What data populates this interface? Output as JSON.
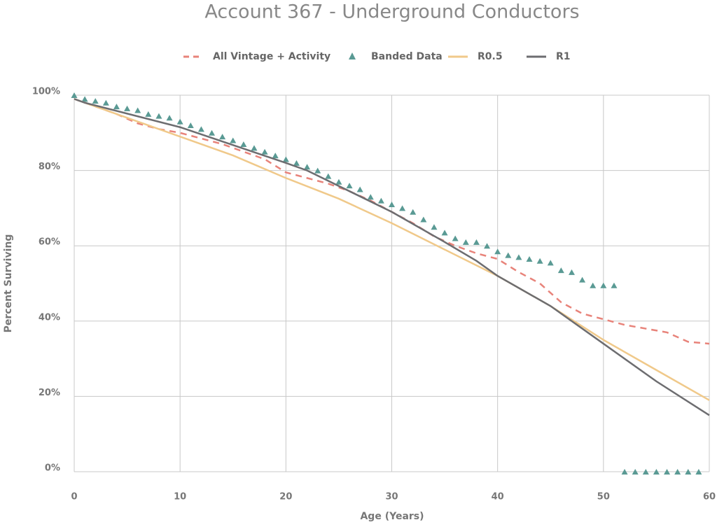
{
  "chart_data": {
    "type": "line",
    "title": "Account 367 - Underground Conductors",
    "x_label": "Age (Years)",
    "y_label": "Percent Surviving",
    "xlim": [
      0,
      60
    ],
    "xticks": [
      0,
      10,
      20,
      30,
      40,
      50,
      60
    ],
    "ylim": [
      0,
      100
    ],
    "yticks": [
      {
        "value": 0,
        "label": "0%"
      },
      {
        "value": 20,
        "label": "20%"
      },
      {
        "value": 40,
        "label": "40%"
      },
      {
        "value": 60,
        "label": "60%"
      },
      {
        "value": 80,
        "label": "80%"
      },
      {
        "value": 100,
        "label": "100%"
      }
    ],
    "grid": true,
    "legend": "top",
    "series": [
      {
        "name": "All Vintage + Activity",
        "color": "#e8837a",
        "line_style": "dashed",
        "x": [
          0,
          2,
          4,
          6,
          8,
          10,
          12,
          14,
          16,
          18,
          20,
          22,
          24,
          26,
          28,
          30,
          32,
          34,
          36,
          38,
          40,
          42,
          44,
          46,
          48,
          50,
          52,
          54,
          56,
          58,
          60
        ],
        "values": [
          99,
          97,
          95,
          92.5,
          91,
          90,
          88.5,
          87,
          85,
          83,
          79.5,
          78,
          76.5,
          74.5,
          72,
          69,
          66,
          62.5,
          60,
          58,
          56.5,
          53,
          50,
          45,
          42,
          40.5,
          39,
          38,
          37,
          34.5,
          34
        ]
      },
      {
        "name": "Banded Data",
        "color": "#5a9a94",
        "marker": "triangle",
        "x": [
          0,
          1,
          2,
          3,
          4,
          5,
          6,
          7,
          8,
          9,
          10,
          11,
          12,
          13,
          14,
          15,
          16,
          17,
          18,
          19,
          20,
          21,
          22,
          23,
          24,
          25,
          26,
          27,
          28,
          29,
          30,
          31,
          32,
          33,
          34,
          35,
          36,
          37,
          38,
          39,
          40,
          41,
          42,
          43,
          44,
          45,
          46,
          47,
          48,
          49,
          50,
          51,
          52,
          53,
          54,
          55,
          56,
          57,
          58,
          59
        ],
        "values": [
          100,
          99,
          98.5,
          98,
          97,
          96.5,
          96,
          95,
          94.5,
          94,
          93,
          92,
          91,
          90,
          89,
          88,
          87,
          86,
          85,
          84,
          83,
          82,
          81,
          80,
          78.5,
          77,
          76,
          75,
          73,
          72,
          71,
          70,
          69,
          67,
          65,
          63.5,
          62,
          61,
          61,
          60,
          58.5,
          57.5,
          57,
          56.5,
          56,
          55.5,
          53.5,
          53,
          51,
          49.5,
          49.5,
          49.5,
          0,
          0,
          0,
          0,
          0,
          0,
          0,
          0
        ]
      },
      {
        "name": "R0.5",
        "color": "#f0c98a",
        "line_style": "solid",
        "x": [
          0,
          5,
          10,
          15,
          20,
          25,
          30,
          35,
          40,
          45,
          50,
          55,
          60
        ],
        "values": [
          99,
          94,
          89,
          84,
          78,
          72.5,
          66,
          59,
          52,
          44,
          35,
          27,
          19
        ]
      },
      {
        "name": "R1",
        "color": "#6d6d70",
        "line_style": "solid",
        "x": [
          0,
          1,
          10,
          20,
          22,
          30,
          35,
          38,
          40,
          45,
          50,
          55,
          60
        ],
        "values": [
          99,
          98,
          91.5,
          82,
          80,
          69,
          61,
          56,
          52,
          44,
          34,
          24,
          15
        ]
      }
    ]
  }
}
